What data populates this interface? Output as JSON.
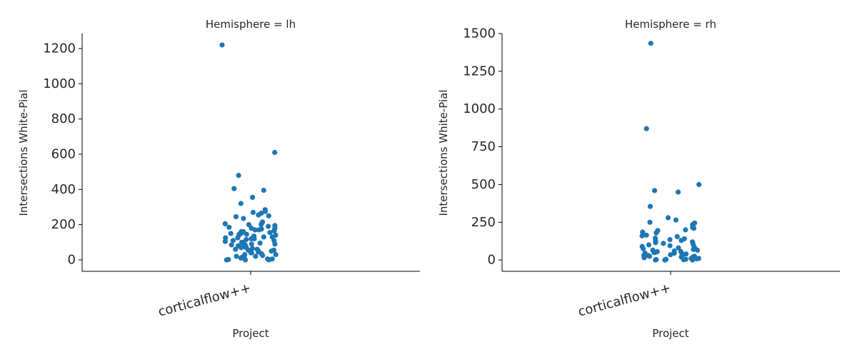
{
  "chart_data": [
    {
      "type": "scatter",
      "title": "Hemisphere = lh",
      "xlabel": "Project",
      "ylabel": "Intersections White-Pial",
      "categories": [
        "corticalflow++"
      ],
      "ylim": [
        -65,
        1285
      ],
      "yticks": [
        0,
        200,
        400,
        600,
        800,
        1000,
        1200
      ],
      "ytick_labels": [
        "0",
        "200",
        "400",
        "600",
        "800",
        "1000",
        "1200"
      ],
      "grid": false,
      "color": "#1f77b4",
      "series": [
        {
          "values": [
            1220,
            610,
            480,
            405,
            395,
            355,
            320,
            285,
            275,
            270,
            265,
            255,
            250,
            245,
            235,
            215,
            210,
            205,
            200,
            200,
            195,
            190,
            185,
            180,
            180,
            175,
            170,
            170,
            165,
            165,
            160,
            160,
            155,
            150,
            150,
            145,
            145,
            140,
            140,
            135,
            130,
            130,
            125,
            125,
            120,
            120,
            115,
            110,
            110,
            105,
            100,
            100,
            95,
            90,
            90,
            85,
            85,
            80,
            75,
            70,
            70,
            65,
            60,
            60,
            55,
            55,
            50,
            50,
            45,
            40,
            40,
            35,
            30,
            30,
            25,
            20,
            20,
            15,
            10,
            10,
            5,
            5,
            2,
            0,
            0,
            0
          ]
        }
      ]
    },
    {
      "type": "scatter",
      "title": "Hemisphere = rh",
      "xlabel": "Project",
      "ylabel": "Intersections White-Pial",
      "categories": [
        "corticalflow++"
      ],
      "ylim": [
        -75,
        1500
      ],
      "yticks": [
        0,
        250,
        500,
        750,
        1000,
        1250,
        1500
      ],
      "ytick_labels": [
        "0",
        "250",
        "500",
        "750",
        "1000",
        "1250",
        "1500"
      ],
      "grid": false,
      "color": "#1f77b4",
      "series": [
        {
          "values": [
            1435,
            870,
            500,
            460,
            450,
            355,
            280,
            265,
            250,
            245,
            235,
            225,
            215,
            210,
            200,
            195,
            185,
            180,
            165,
            160,
            155,
            145,
            140,
            135,
            130,
            125,
            120,
            115,
            110,
            105,
            100,
            95,
            90,
            85,
            80,
            80,
            75,
            70,
            65,
            65,
            60,
            55,
            55,
            50,
            50,
            45,
            45,
            40,
            40,
            35,
            35,
            30,
            30,
            25,
            25,
            20,
            20,
            15,
            15,
            10,
            10,
            8,
            5,
            5,
            3,
            2,
            0,
            0,
            0,
            0
          ]
        }
      ]
    }
  ]
}
